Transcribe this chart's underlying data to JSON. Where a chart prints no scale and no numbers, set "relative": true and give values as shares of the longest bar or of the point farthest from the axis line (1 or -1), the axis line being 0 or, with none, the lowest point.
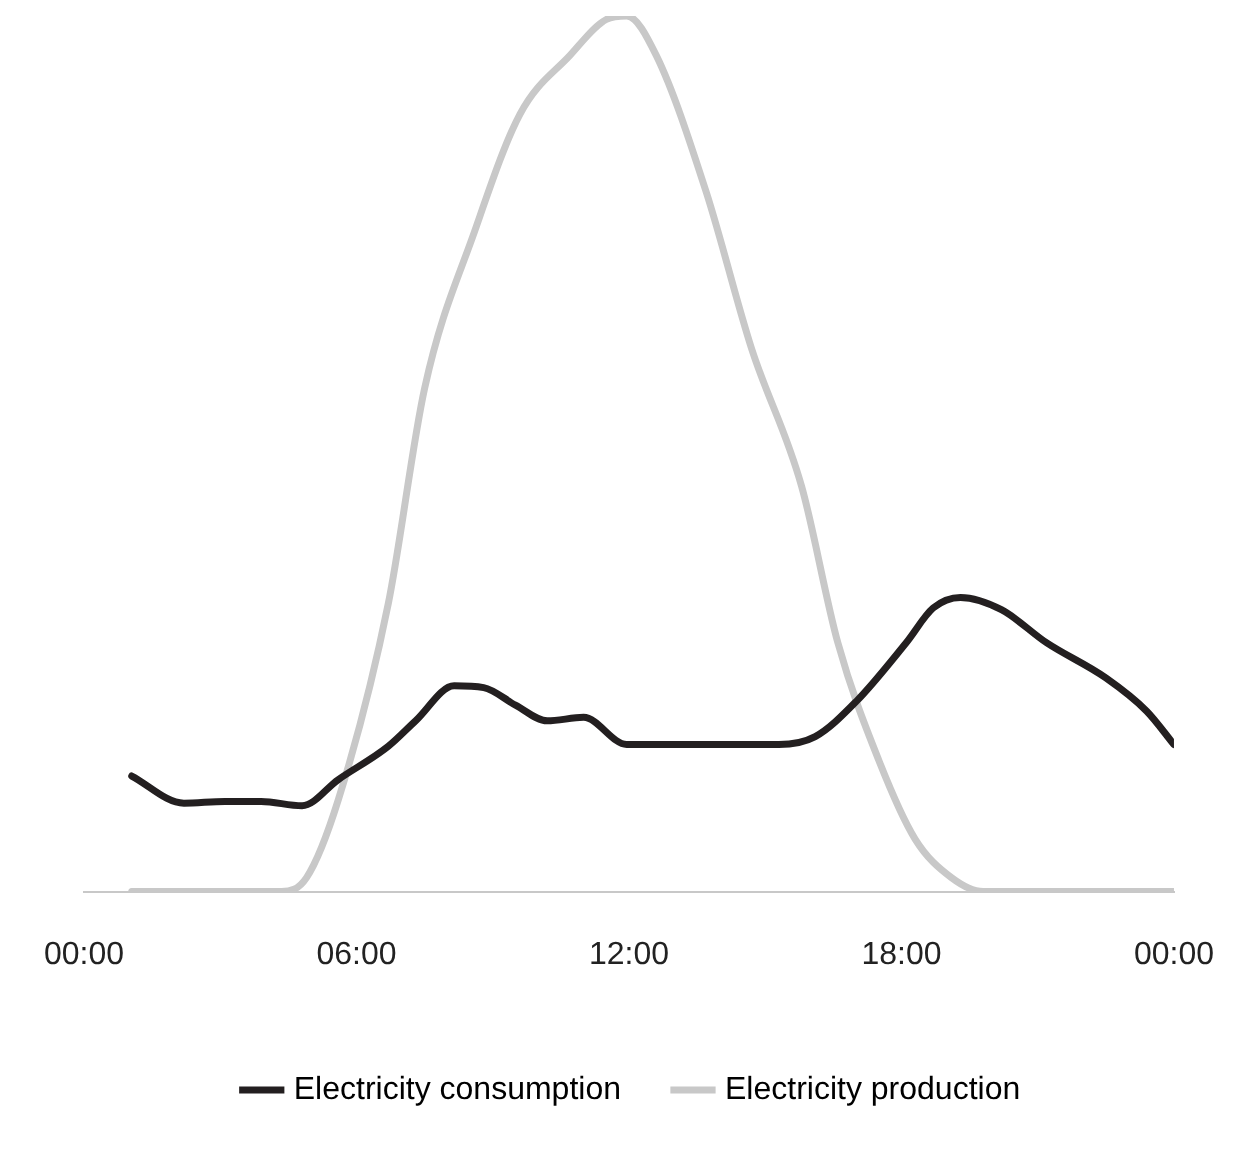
{
  "chart_data": {
    "type": "line",
    "relative": true,
    "xlim": [
      0,
      24
    ],
    "xticks": [
      {
        "value": 0,
        "label": "00:00"
      },
      {
        "value": 6,
        "label": "06:00"
      },
      {
        "value": 12,
        "label": "12:00"
      },
      {
        "value": 18,
        "label": "18:00"
      },
      {
        "value": 24,
        "label": "00:00"
      }
    ],
    "series": [
      {
        "name": "Electricity consumption",
        "color": "#231f20",
        "x": [
          1.05,
          2.2,
          3.1,
          3.9,
          4.8,
          5.6,
          6.7,
          7.3,
          8.15,
          8.8,
          9.5,
          10.2,
          11.0,
          11.95,
          13.0,
          15.3,
          16.1,
          17.0,
          18.1,
          18.7,
          19.3,
          20.2,
          21.2,
          22.5,
          23.4,
          24
        ],
        "values": [
          0.132,
          0.101,
          0.103,
          0.103,
          0.098,
          0.128,
          0.166,
          0.195,
          0.235,
          0.233,
          0.213,
          0.195,
          0.199,
          0.168,
          0.168,
          0.168,
          0.177,
          0.217,
          0.284,
          0.324,
          0.336,
          0.322,
          0.284,
          0.244,
          0.206,
          0.168
        ]
      },
      {
        "name": "Electricity production",
        "color": "#c8c8c8",
        "x": [
          1.05,
          4.35,
          4.9,
          5.6,
          6.7,
          7.5,
          8.6,
          9.6,
          10.7,
          11.5,
          11.95,
          12.6,
          13.7,
          14.7,
          15.8,
          16.6,
          17.5,
          18.3,
          19.1,
          19.8,
          24
        ],
        "values": [
          0,
          0,
          0.016,
          0.105,
          0.329,
          0.575,
          0.754,
          0.888,
          0.955,
          0.996,
          1,
          0.955,
          0.799,
          0.62,
          0.463,
          0.284,
          0.15,
          0.06,
          0.016,
          0,
          0
        ]
      }
    ],
    "grid": false,
    "legend": "bottom",
    "marker": "none",
    "line_style": "solid"
  }
}
